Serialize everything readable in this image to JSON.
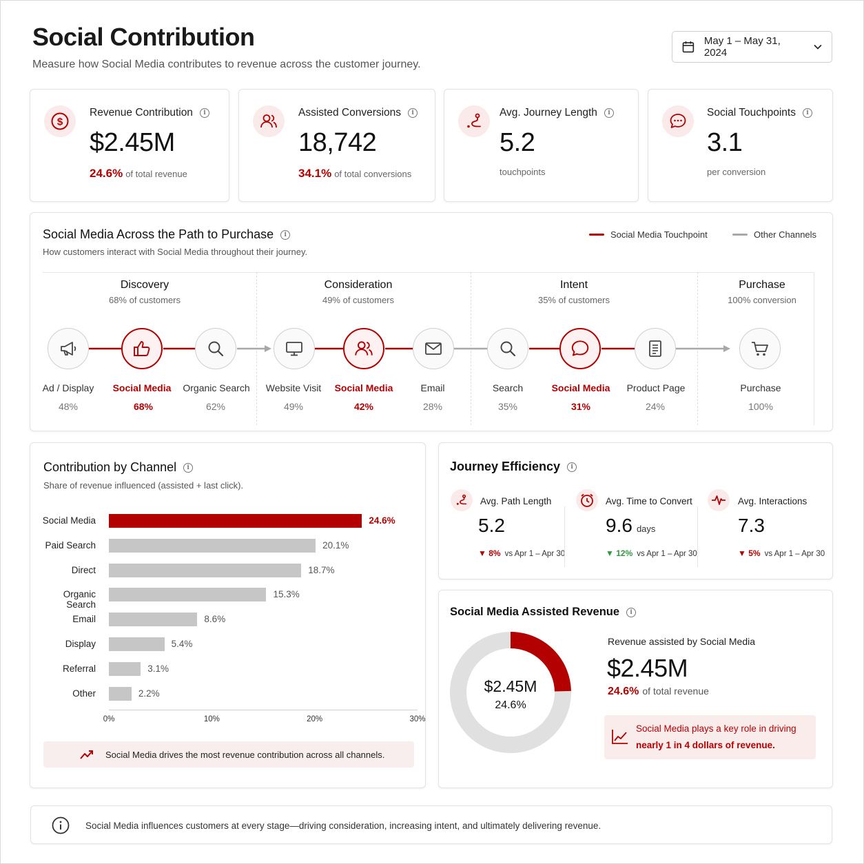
{
  "header": {
    "title": "Social Contribution",
    "subtitle": "Measure how Social Media contributes to revenue across the customer journey.",
    "date_range": "May 1 – May 31, 2024"
  },
  "kpis": [
    {
      "label": "Revenue Contribution",
      "value": "$2.45M",
      "highlight": "24.6%",
      "sub": "of total revenue",
      "icon": "dollar-icon"
    },
    {
      "label": "Assisted Conversions",
      "value": "18,742",
      "highlight": "34.1%",
      "sub": "of total conversions",
      "icon": "users-icon"
    },
    {
      "label": "Avg. Journey Length",
      "value": "5.2",
      "highlight": "",
      "sub": "touchpoints",
      "icon": "path-icon"
    },
    {
      "label": "Social Touchpoints",
      "value": "3.1",
      "highlight": "",
      "sub": "per conversion",
      "icon": "chat-icon"
    }
  ],
  "path": {
    "title": "Social Media Across the Path to Purchase",
    "subtitle": "How customers interact with Social Media throughout their journey.",
    "legend": [
      {
        "label": "Social Media Touchpoint",
        "color": "#b30000"
      },
      {
        "label": "Other Channels",
        "color": "#a8a8a8"
      }
    ],
    "stages": [
      {
        "name": "Discovery",
        "sub": "68% of customers"
      },
      {
        "name": "Consideration",
        "sub": "49% of customers"
      },
      {
        "name": "Intent",
        "sub": "35% of customers"
      },
      {
        "name": "Purchase",
        "sub": "100% conversion"
      }
    ],
    "nodes": [
      {
        "label": "Ad / Display",
        "pct": "48%",
        "icon": "megaphone-icon",
        "social": false
      },
      {
        "label": "Social Media",
        "pct": "68%",
        "icon": "thumbs-up-icon",
        "social": true
      },
      {
        "label": "Organic Search",
        "pct": "62%",
        "icon": "search-icon",
        "social": false
      },
      {
        "label": "Website Visit",
        "pct": "49%",
        "icon": "monitor-icon",
        "social": false
      },
      {
        "label": "Social Media",
        "pct": "42%",
        "icon": "users-icon",
        "social": true
      },
      {
        "label": "Email",
        "pct": "28%",
        "icon": "mail-icon",
        "social": false
      },
      {
        "label": "Search",
        "pct": "35%",
        "icon": "search-icon",
        "social": false
      },
      {
        "label": "Social Media",
        "pct": "31%",
        "icon": "chat-icon",
        "social": true
      },
      {
        "label": "Product Page",
        "pct": "24%",
        "icon": "document-icon",
        "social": false
      },
      {
        "label": "Purchase",
        "pct": "100%",
        "icon": "cart-icon",
        "social": false
      }
    ]
  },
  "channel": {
    "title": "Contribution by Channel",
    "subtitle": "Share of revenue influenced (assisted + last click).",
    "callout": "Social Media drives the most revenue contribution across all channels."
  },
  "chart_data": {
    "type": "bar",
    "orientation": "horizontal",
    "categories": [
      "Social Media",
      "Paid Search",
      "Direct",
      "Organic Search",
      "Email",
      "Display",
      "Referral",
      "Other"
    ],
    "values": [
      24.6,
      20.1,
      18.7,
      15.3,
      8.6,
      5.4,
      3.1,
      2.2
    ],
    "value_labels": [
      "24.6%",
      "20.1%",
      "18.7%",
      "15.3%",
      "8.6%",
      "5.4%",
      "3.1%",
      "2.2%"
    ],
    "xlim": [
      0,
      30
    ],
    "x_ticks": [
      "0%",
      "10%",
      "20%",
      "30%"
    ],
    "highlight_color": "#b30000",
    "bar_color": "#c6c6c6"
  },
  "efficiency": {
    "title": "Journey Efficiency",
    "metrics": [
      {
        "label": "Avg. Path Length",
        "value": "5.2",
        "unit": "",
        "delta": "8%",
        "direction": "down",
        "compare": "vs Apr 1 – Apr 30",
        "icon": "path-icon"
      },
      {
        "label": "Avg. Time to Convert",
        "value": "9.6",
        "unit": "days",
        "delta": "12%",
        "direction": "up",
        "compare": "vs Apr 1 – Apr 30",
        "icon": "timer-icon"
      },
      {
        "label": "Avg. Interactions",
        "value": "7.3",
        "unit": "",
        "delta": "5%",
        "direction": "down",
        "compare": "vs Apr 1 – Apr 30",
        "icon": "pulse-icon"
      }
    ]
  },
  "assisted": {
    "title": "Social Media Assisted Revenue",
    "donut_value": "$2.45M",
    "donut_pct": "24.6%",
    "share": 0.246,
    "label": "Revenue assisted by Social Media",
    "value": "$2.45M",
    "highlight": "24.6%",
    "sub": "of total revenue",
    "callout_line1": "Social Media plays a key role in driving",
    "callout_line2": "nearly 1 in 4 dollars of revenue."
  },
  "footer": {
    "note": "Social Media influences customers at every stage—driving consideration, increasing intent, and ultimately delivering revenue."
  }
}
